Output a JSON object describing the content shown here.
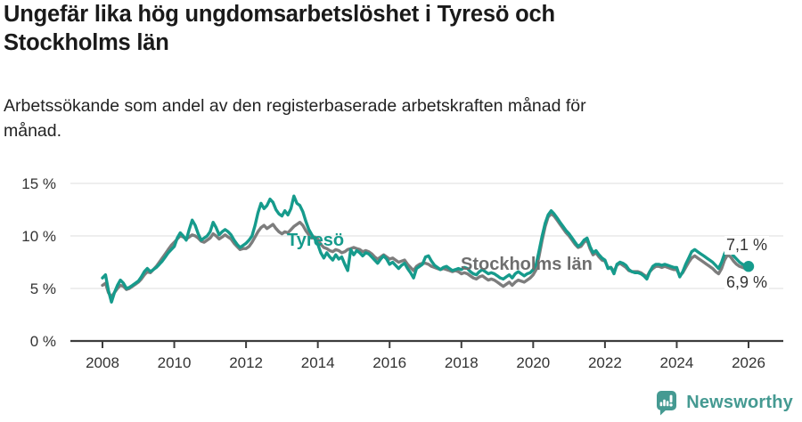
{
  "header": {
    "title": "Ungefär lika hög ungdomsarbetslöshet i Tyresö och Stockholms län",
    "subtitle": "Arbetssökande som andel av den registerbaserade arbetskraften månad för månad."
  },
  "chart_data": {
    "type": "line",
    "title": "Ungefär lika hög ungdomsarbetslöshet i Tyresö och Stockholms län",
    "subtitle": "Arbetssökande som andel av den registerbaserade arbetskraften månad för månad.",
    "frequency": "monthly",
    "x_start": "2008-01",
    "x_end": "2026-01",
    "x_tick_labels": [
      "2008",
      "2010",
      "2012",
      "2014",
      "2016",
      "2018",
      "2020",
      "2022",
      "2024",
      "2026"
    ],
    "y_tick_values": [
      0,
      5,
      10,
      15
    ],
    "y_tick_labels": [
      "0 %",
      "5 %",
      "10 %",
      "15 %"
    ],
    "ylim": [
      0,
      15.8
    ],
    "grid": "horizontal-gridlines",
    "legend_position": "inline-labels-on-lines",
    "series": [
      {
        "name": "Tyresö",
        "color": "#169b8c",
        "end_label": "7,1 %",
        "latest_value": 7.1,
        "values": [
          6.0,
          6.3,
          4.8,
          3.7,
          4.6,
          5.3,
          5.8,
          5.5,
          5.0,
          5.1,
          5.3,
          5.5,
          5.7,
          6.1,
          6.6,
          6.9,
          6.6,
          6.8,
          7.0,
          7.3,
          7.6,
          8.0,
          8.4,
          8.7,
          9.0,
          9.8,
          10.3,
          10.0,
          9.6,
          10.6,
          11.5,
          11.0,
          10.2,
          9.6,
          9.8,
          10.0,
          10.4,
          11.3,
          10.8,
          10.1,
          10.4,
          10.6,
          10.4,
          10.1,
          9.6,
          9.2,
          8.9,
          9.1,
          9.3,
          9.6,
          10.0,
          11.0,
          12.2,
          13.1,
          12.6,
          12.9,
          13.5,
          13.2,
          12.5,
          12.1,
          11.9,
          12.4,
          12.0,
          12.6,
          13.8,
          13.1,
          12.9,
          12.3,
          11.4,
          10.6,
          10.1,
          9.7,
          9.2,
          8.4,
          7.9,
          8.4,
          8.0,
          7.7,
          8.2,
          7.8,
          8.0,
          7.3,
          6.7,
          8.7,
          8.2,
          8.6,
          8.4,
          8.1,
          8.4,
          8.3,
          8.0,
          7.7,
          7.4,
          7.8,
          8.1,
          7.8,
          7.3,
          7.5,
          7.2,
          6.9,
          7.2,
          7.4,
          6.9,
          6.5,
          6.0,
          6.9,
          7.1,
          7.3,
          8.0,
          8.1,
          7.6,
          7.2,
          7.0,
          6.8,
          7.0,
          7.1,
          6.9,
          6.7,
          6.8,
          6.9,
          6.8,
          7.0,
          6.9,
          6.6,
          6.4,
          6.3,
          6.6,
          6.8,
          6.6,
          6.4,
          6.5,
          6.4,
          6.2,
          6.0,
          5.9,
          6.1,
          6.3,
          6.0,
          6.4,
          6.6,
          6.4,
          6.2,
          6.4,
          6.5,
          6.8,
          7.3,
          8.6,
          10.0,
          11.2,
          12.0,
          12.4,
          12.1,
          11.7,
          11.3,
          10.9,
          10.5,
          10.2,
          9.8,
          9.4,
          9.0,
          9.2,
          9.6,
          9.8,
          9.0,
          8.4,
          8.6,
          8.2,
          7.9,
          7.7,
          6.9,
          7.0,
          6.4,
          7.3,
          7.5,
          7.4,
          7.2,
          6.8,
          6.6,
          6.5,
          6.5,
          6.4,
          6.2,
          5.9,
          6.6,
          7.1,
          7.3,
          7.3,
          7.2,
          7.3,
          7.2,
          7.1,
          7.0,
          7.0,
          6.1,
          6.6,
          7.3,
          7.9,
          8.5,
          8.7,
          8.5,
          8.3,
          8.1,
          7.9,
          7.7,
          7.5,
          7.2,
          6.9,
          7.5,
          8.3,
          8.8,
          8.5,
          8.1,
          7.8,
          7.5,
          7.3,
          7.2,
          7.1
        ]
      },
      {
        "name": "Stockholms län",
        "color": "#7d7d7d",
        "end_label": "6,9 %",
        "latest_value": 6.9,
        "values": [
          5.3,
          5.5,
          4.6,
          4.2,
          4.6,
          5.0,
          5.3,
          5.2,
          4.9,
          5.0,
          5.2,
          5.4,
          5.6,
          5.9,
          6.3,
          6.6,
          6.5,
          6.8,
          7.1,
          7.5,
          7.9,
          8.3,
          8.7,
          9.1,
          9.4,
          9.7,
          10.0,
          9.9,
          9.7,
          9.9,
          10.1,
          10.0,
          9.8,
          9.5,
          9.4,
          9.6,
          9.8,
          10.2,
          10.0,
          9.7,
          9.9,
          10.1,
          9.9,
          9.7,
          9.3,
          9.0,
          8.7,
          8.8,
          8.8,
          9.0,
          9.4,
          9.9,
          10.4,
          10.8,
          11.0,
          10.7,
          10.9,
          11.1,
          10.7,
          10.4,
          10.2,
          10.4,
          10.3,
          10.6,
          10.9,
          11.1,
          11.3,
          11.0,
          10.5,
          10.1,
          9.8,
          9.9,
          9.7,
          9.2,
          8.9,
          8.8,
          8.6,
          8.5,
          8.7,
          8.6,
          8.4,
          8.5,
          8.7,
          8.8,
          8.9,
          8.8,
          8.7,
          8.5,
          8.6,
          8.5,
          8.3,
          8.0,
          7.8,
          8.0,
          8.2,
          8.0,
          7.8,
          7.9,
          7.7,
          7.5,
          7.6,
          7.7,
          7.3,
          7.0,
          6.7,
          7.1,
          7.3,
          7.4,
          7.4,
          7.3,
          7.1,
          7.0,
          6.9,
          6.8,
          6.9,
          6.8,
          6.7,
          6.6,
          6.7,
          6.6,
          6.4,
          6.5,
          6.4,
          6.2,
          6.0,
          5.9,
          6.1,
          6.2,
          6.0,
          5.8,
          5.9,
          5.8,
          5.6,
          5.4,
          5.2,
          5.4,
          5.6,
          5.3,
          5.6,
          5.8,
          5.7,
          5.6,
          5.8,
          6.0,
          6.3,
          6.8,
          8.1,
          9.6,
          10.9,
          11.8,
          12.1,
          11.9,
          11.5,
          11.1,
          10.7,
          10.3,
          10.0,
          9.6,
          9.2,
          8.9,
          9.0,
          9.4,
          9.6,
          8.8,
          8.2,
          8.4,
          8.0,
          7.7,
          7.6,
          7.0,
          7.0,
          6.6,
          7.2,
          7.4,
          7.2,
          7.0,
          6.7,
          6.6,
          6.6,
          6.6,
          6.5,
          6.3,
          6.1,
          6.6,
          6.9,
          7.1,
          7.1,
          7.0,
          7.1,
          7.0,
          6.9,
          6.8,
          6.8,
          6.2,
          6.5,
          7.0,
          7.5,
          7.9,
          8.1,
          7.9,
          7.7,
          7.5,
          7.3,
          7.1,
          6.9,
          6.6,
          6.4,
          6.9,
          7.7,
          8.2,
          8.0,
          7.6,
          7.3,
          7.1,
          7.0,
          6.9,
          6.9
        ]
      }
    ],
    "axis_color": "#3c3c3c",
    "gridline_color": "#dcdcdc"
  },
  "footer": {
    "brand": "Newsworthy",
    "color": "#459a92",
    "logo_icon": "newsworthy-speech-bubble-bar-chart-icon"
  }
}
